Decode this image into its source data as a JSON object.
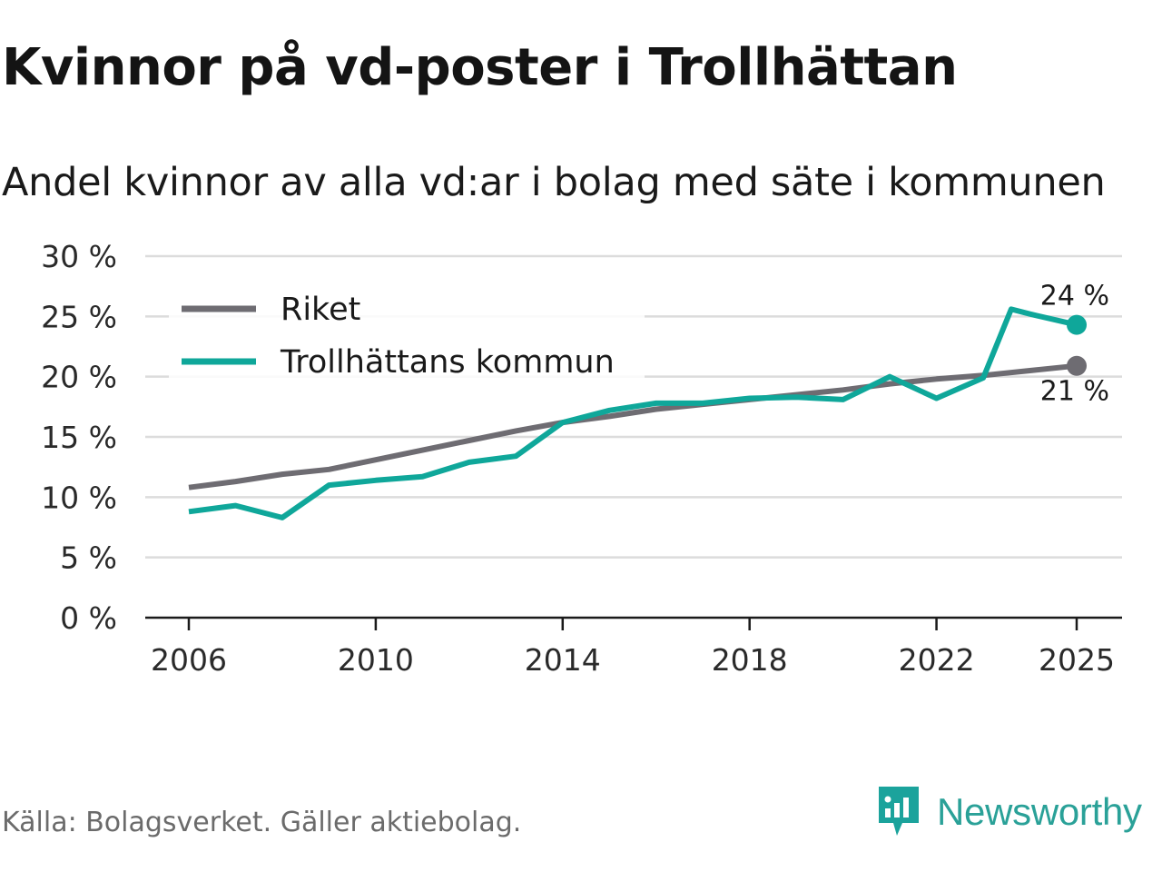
{
  "title": "Kvinnor på vd-poster i Trollhättan",
  "subtitle": "Andel kvinnor av alla vd:ar i bolag med säte i kommunen",
  "source": "Källa: Bolagsverket. Gäller aktiebolag.",
  "brand": {
    "name": "Newsworthy",
    "color": "#1ba39c"
  },
  "colors": {
    "riket": "#6e6c72",
    "trollhattan": "#0fa79a",
    "grid": "#dcdcdc",
    "axis": "#1a1a1a"
  },
  "chart_data": {
    "type": "line",
    "title": "Kvinnor på vd-poster i Trollhättan",
    "subtitle": "Andel kvinnor av alla vd:ar i bolag med säte i kommunen",
    "xlabel": "",
    "ylabel": "",
    "ylim": [
      0,
      30
    ],
    "xlim": [
      2006,
      2025
    ],
    "y_ticks": [
      0,
      5,
      10,
      15,
      20,
      25,
      30
    ],
    "y_tick_labels": [
      "0 %",
      "5 %",
      "10 %",
      "15 %",
      "20 %",
      "25 %",
      "30 %"
    ],
    "x_ticks": [
      2006,
      2010,
      2014,
      2018,
      2022,
      2025
    ],
    "x_tick_labels": [
      "2006",
      "2010",
      "2014",
      "2018",
      "2022",
      "2025"
    ],
    "grid": true,
    "legend_position": "top-left",
    "series": [
      {
        "name": "Riket",
        "color": "#6e6c72",
        "end_label": "21 %",
        "x": [
          2006,
          2007,
          2008,
          2009,
          2010,
          2011,
          2012,
          2013,
          2014,
          2015,
          2016,
          2017,
          2018,
          2019,
          2020,
          2021,
          2022,
          2023,
          2024,
          2025
        ],
        "values": [
          10.8,
          11.3,
          11.9,
          12.3,
          13.1,
          13.9,
          14.7,
          15.5,
          16.2,
          16.7,
          17.3,
          17.7,
          18.1,
          18.5,
          18.9,
          19.4,
          19.8,
          20.1,
          20.5,
          20.9
        ]
      },
      {
        "name": "Trollhättans kommun",
        "color": "#0fa79a",
        "end_label": "24 %",
        "x": [
          2006,
          2007,
          2008,
          2009,
          2010,
          2011,
          2012,
          2013,
          2014,
          2015,
          2016,
          2017,
          2018,
          2019,
          2020,
          2021,
          2022,
          2023,
          2023.6,
          2024,
          2025
        ],
        "values": [
          8.8,
          9.3,
          8.3,
          11.0,
          11.4,
          11.7,
          12.9,
          13.4,
          16.2,
          17.2,
          17.8,
          17.8,
          18.2,
          18.3,
          18.1,
          20.0,
          18.2,
          19.9,
          25.6,
          25.2,
          24.3
        ]
      }
    ]
  }
}
